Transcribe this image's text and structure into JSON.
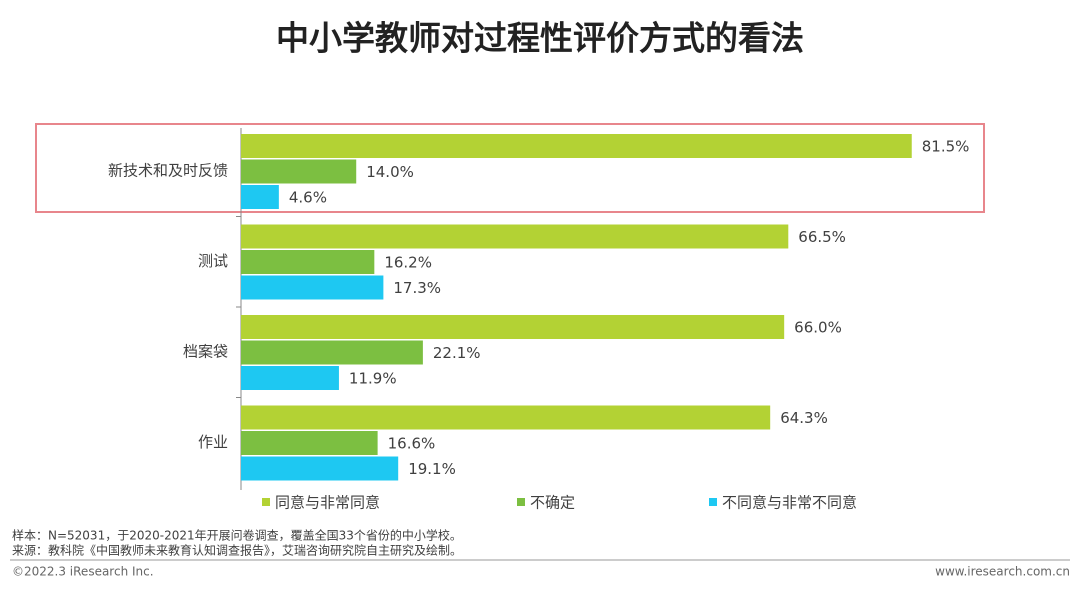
{
  "chart_data": {
    "type": "bar",
    "orientation": "horizontal",
    "title": "中小学教师对过程性评价方式的看法",
    "categories": [
      "新技术和及时反馈",
      "测试",
      "档案袋",
      "作业"
    ],
    "series": [
      {
        "name": "同意与非常同意",
        "color": "#b3d234",
        "values": [
          81.5,
          66.5,
          66.0,
          64.3
        ],
        "value_labels": [
          "81.5%",
          "66.5%",
          "66.0%",
          "64.3%"
        ]
      },
      {
        "name": "不确定",
        "color": "#7cbf41",
        "values": [
          14.0,
          16.2,
          22.1,
          16.6
        ],
        "value_labels": [
          "14.0%",
          "16.2%",
          "22.1%",
          "16.6%"
        ]
      },
      {
        "name": "不同意与非常不同意",
        "color": "#1ec8f2",
        "values": [
          4.6,
          17.3,
          11.9,
          19.1
        ],
        "value_labels": [
          "4.6%",
          "17.3%",
          "11.9%",
          "19.1%"
        ]
      }
    ],
    "xlim": [
      0,
      100
    ]
  },
  "footer": {
    "notes": [
      "样本：N=52031，于2020-2021年开展问卷调查，覆盖全国33个省份的中小学校。",
      "来源：教科院《中国教师未来教育认知调查报告》，艾瑞咨询研究院自主研究及绘制。"
    ],
    "copyright": "©2022.3 iResearch Inc.",
    "website": "www.iresearch.com.cn"
  }
}
